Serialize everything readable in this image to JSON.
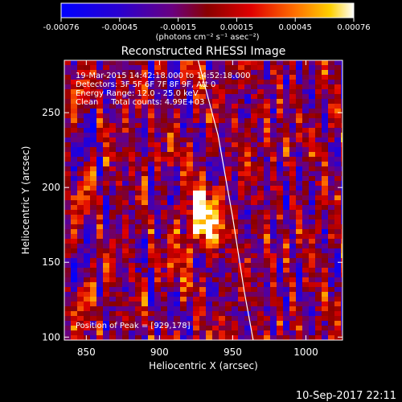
{
  "chart_data": {
    "type": "heatmap",
    "title": "Reconstructed RHESSI Image",
    "xlabel": "Heliocentric X (arcsec)",
    "ylabel": "Heliocentric Y (arcsec)",
    "xlim": [
      835,
      1025
    ],
    "ylim": [
      98,
      285
    ],
    "x_ticks": [
      850,
      900,
      950,
      1000
    ],
    "y_ticks": [
      100,
      150,
      200,
      250
    ],
    "colorbar": {
      "ticks": [
        "-0.00076",
        "-0.00045",
        "-0.00015",
        "0.00015",
        "0.00045",
        "0.00076"
      ],
      "units_label": "(photons cm⁻² s⁻¹ asec⁻²)",
      "range": [
        -0.00076,
        0.00076
      ]
    },
    "annotations": [
      "19-Mar-2015 14:42:18.000 to 14:52:18.000",
      "Detectors: 3F 5F 6F 7F 8F 9F, Att 0",
      "Energy Range: 12.0 - 25.0 keV",
      "Clean     Total counts: 4.99E+03"
    ],
    "peak_label": "Position of Peak = [929,178]",
    "peak": [
      929,
      178
    ],
    "limb_curve": [
      [
        925,
        290
      ],
      [
        940,
        235
      ],
      [
        950,
        180
      ],
      [
        958,
        130
      ],
      [
        964,
        98
      ]
    ],
    "grid": false
  },
  "footer": {
    "timestamp": "10-Sep-2017 22:11"
  }
}
